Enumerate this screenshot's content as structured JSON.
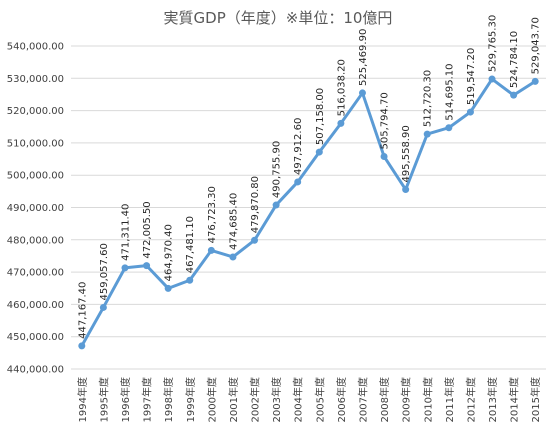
{
  "chart_data": {
    "type": "line",
    "title": "実質GDP（年度）※単位：10億円",
    "categories": [
      "1994年度",
      "1995年度",
      "1996年度",
      "1997年度",
      "1998年度",
      "1999年度",
      "2000年度",
      "2001年度",
      "2002年度",
      "2003年度",
      "2004年度",
      "2005年度",
      "2006年度",
      "2007年度",
      "2008年度",
      "2009年度",
      "2010年度",
      "2011年度",
      "2012年度",
      "2013年度",
      "2014年度",
      "2015年度"
    ],
    "values": [
      447167.4,
      459057.6,
      471311.4,
      472005.5,
      464970.4,
      467481.1,
      476723.3,
      474685.4,
      479870.8,
      490755.9,
      497912.6,
      507158.0,
      516038.2,
      525469.9,
      505794.7,
      495558.9,
      512720.3,
      514695.1,
      519547.2,
      529765.3,
      524784.1,
      529043.7
    ],
    "data_labels": [
      "447,167.40",
      "459,057.60",
      "471,311.40",
      "472,005.50",
      "464,970.40",
      "467,481.10",
      "476,723.30",
      "474,685.40",
      "479,870.80",
      "490,755.90",
      "497,912.60",
      "507,158.00",
      "516,038.20",
      "525,469.90",
      "505,794.70",
      "495,558.90",
      "512,720.30",
      "514,695.10",
      "519,547.20",
      "529,765.30",
      "524,784.10",
      "529,043.70"
    ],
    "ylim": [
      440000,
      540000
    ],
    "y_ticks": [
      "440,000.00",
      "450,000.00",
      "460,000.00",
      "470,000.00",
      "480,000.00",
      "490,000.00",
      "500,000.00",
      "510,000.00",
      "520,000.00",
      "530,000.00",
      "540,000.00"
    ],
    "grid": true,
    "line_color": "#5b9bd5",
    "xlabel": "",
    "ylabel": ""
  }
}
